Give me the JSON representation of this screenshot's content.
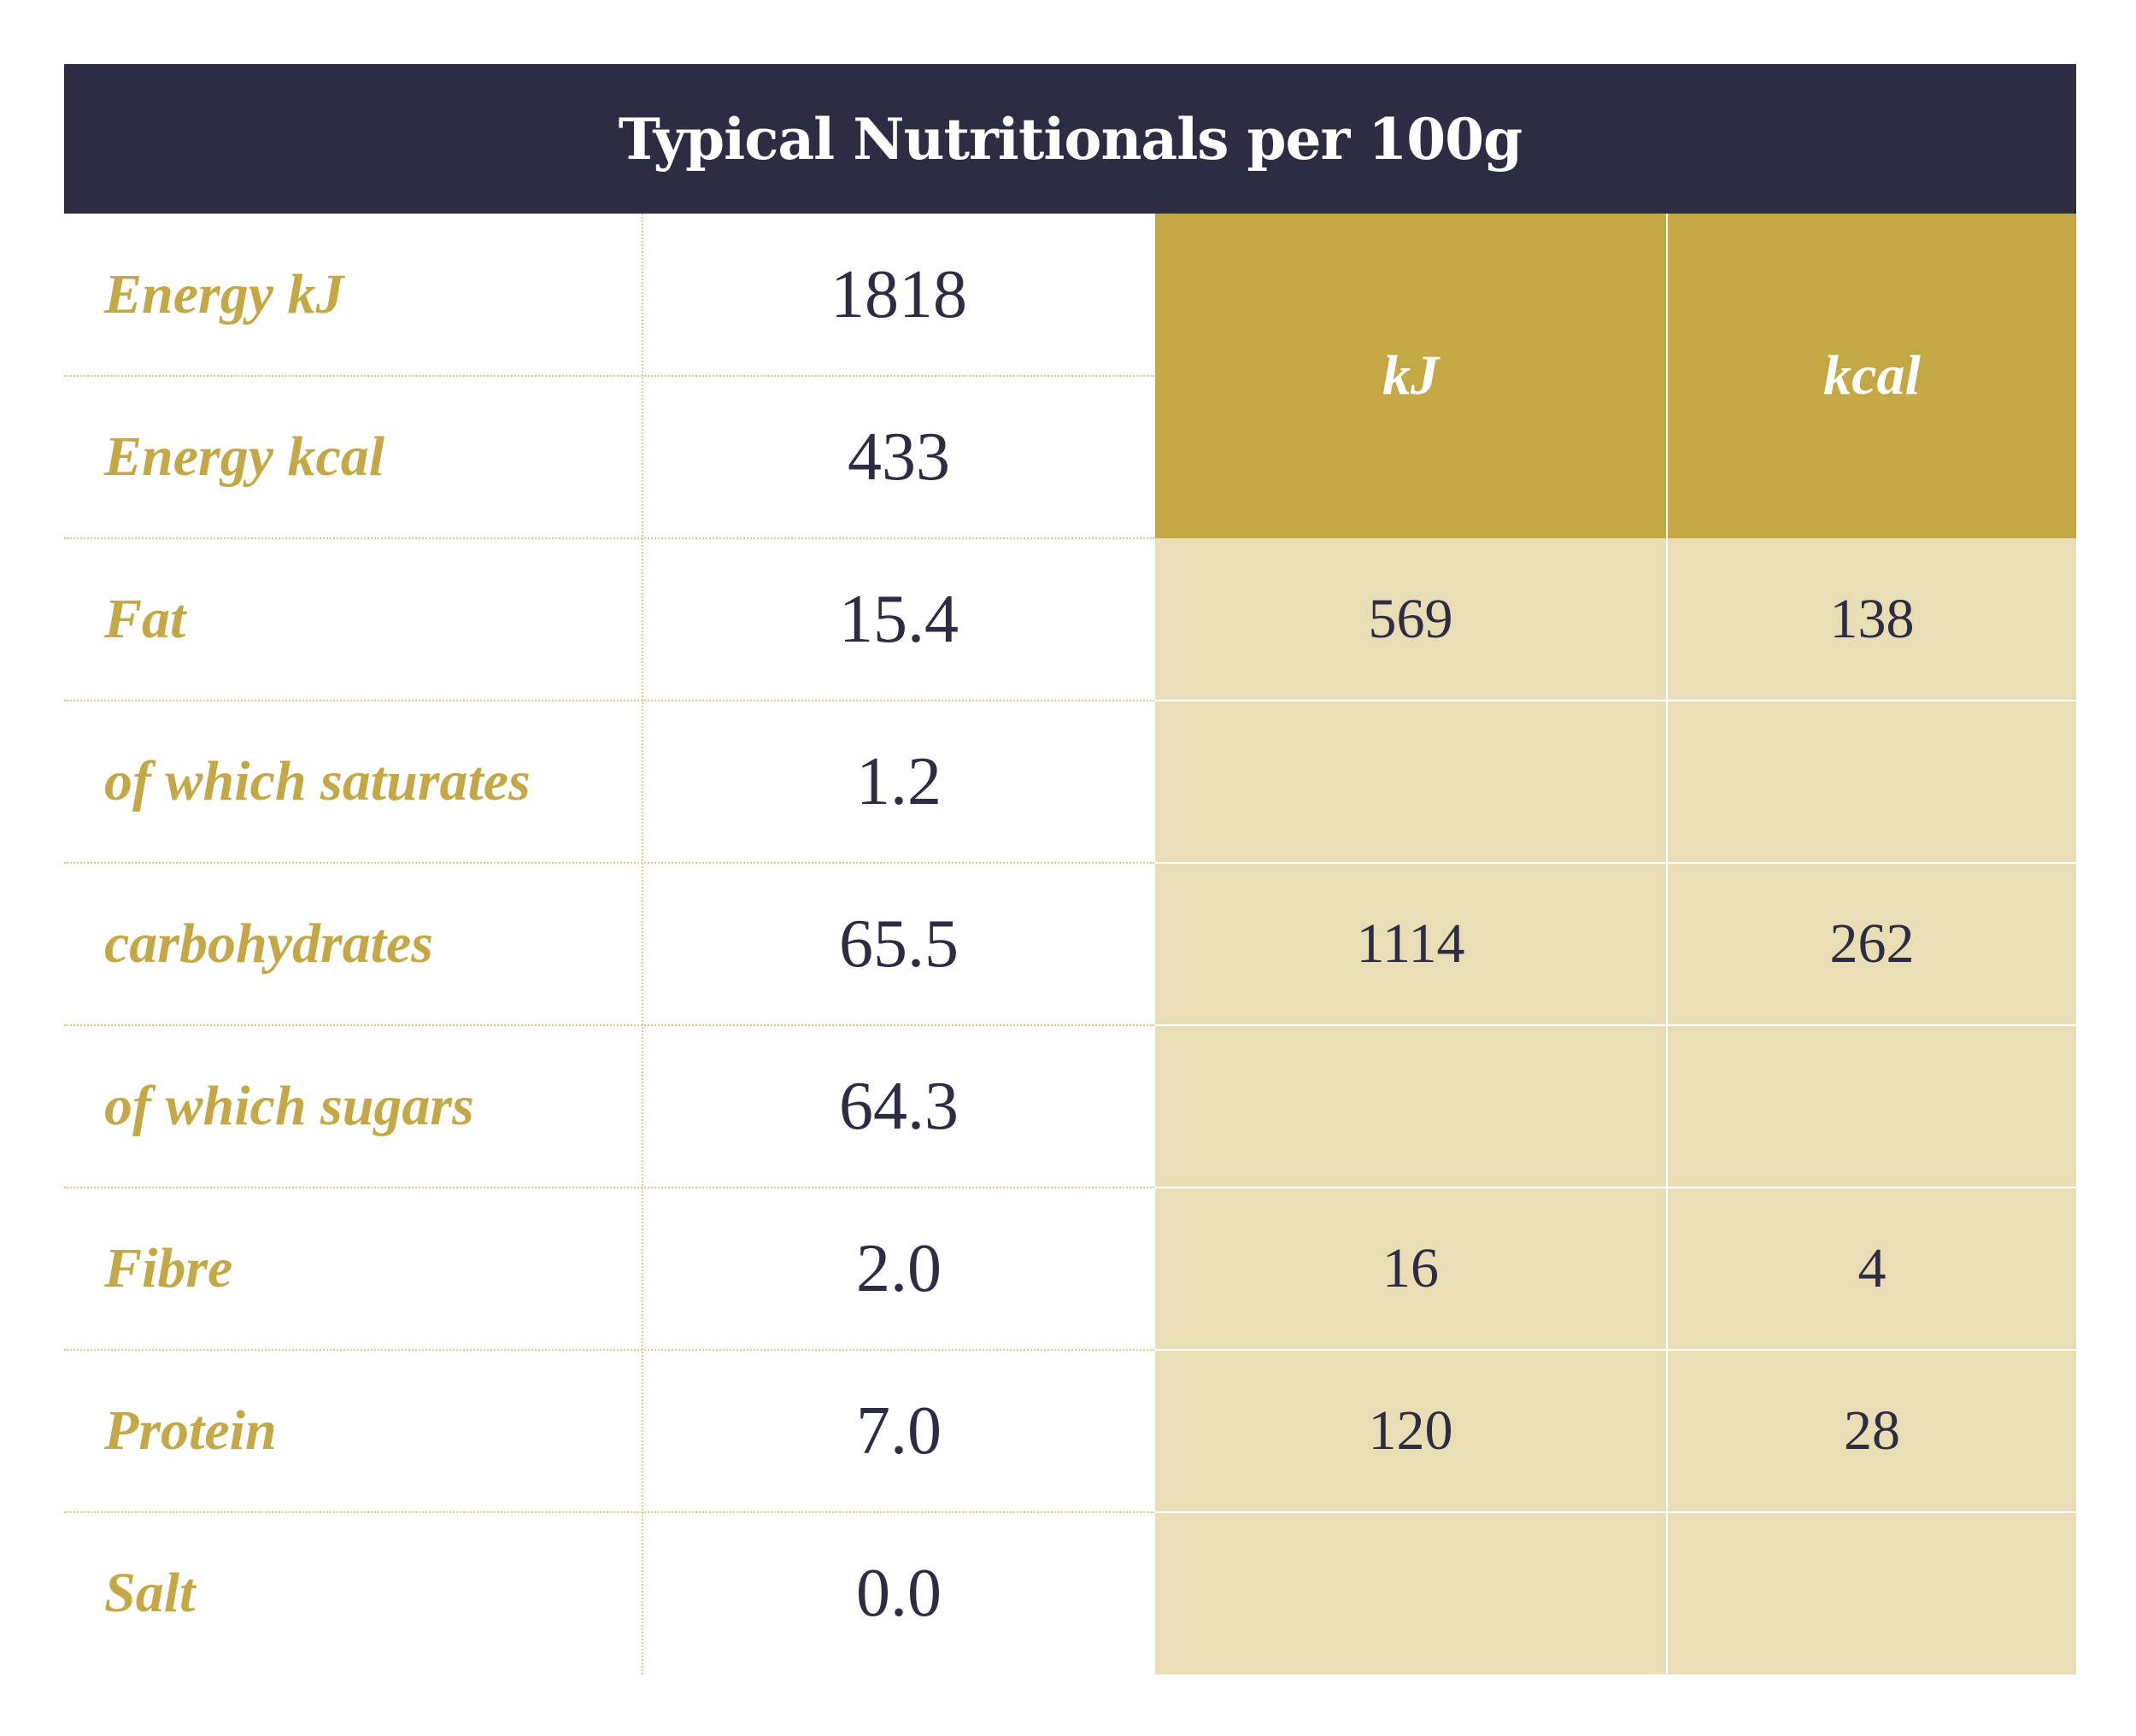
{
  "title": "Typical Nutritionals per 100g",
  "columns": {
    "kj": "kJ",
    "kcal": "kcal"
  },
  "rows": [
    {
      "label": "Energy kJ",
      "value": "1818"
    },
    {
      "label": "Energy kcal",
      "value": "433"
    },
    {
      "label": "Fat",
      "value": "15.4",
      "kj": "569",
      "kcal": "138"
    },
    {
      "label": "of which saturates",
      "value": "1.2",
      "kj": "",
      "kcal": ""
    },
    {
      "label": "carbohydrates",
      "value": "65.5",
      "kj": "1114",
      "kcal": "262"
    },
    {
      "label": "of which sugars",
      "value": "64.3",
      "kj": "",
      "kcal": ""
    },
    {
      "label": "Fibre",
      "value": "2.0",
      "kj": "16",
      "kcal": "4"
    },
    {
      "label": "Protein",
      "value": "7.0",
      "kj": "120",
      "kcal": "28"
    },
    {
      "label": "Salt",
      "value": "0.0",
      "kj": "",
      "kcal": ""
    }
  ]
}
